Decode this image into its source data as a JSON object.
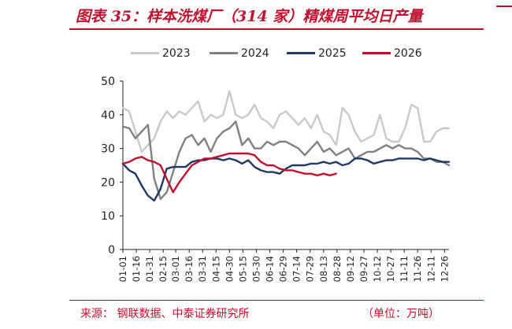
{
  "header": {
    "title": "图表 35：样本洗煤厂（314 家）精煤周平均日产量"
  },
  "footer": {
    "source": "来源：   钢联数据、中泰证券研究所",
    "unit": "（单位：万吨）"
  },
  "colors": {
    "accent": "#c0102e"
  },
  "chart_data": {
    "type": "line",
    "title": "",
    "xlabel": "",
    "ylabel": "",
    "unit": "万吨",
    "ylim": [
      0,
      50
    ],
    "yticks": [
      0,
      10,
      20,
      30,
      40,
      50
    ],
    "grid": false,
    "legend_position": "top",
    "x_tick_labels": [
      "01-01",
      "01-16",
      "01-31",
      "02-15",
      "03-01",
      "03-16",
      "03-31",
      "04-15",
      "04-30",
      "05-15",
      "05-30",
      "06-14",
      "06-29",
      "07-14",
      "07-29",
      "08-13",
      "08-28",
      "09-12",
      "09-27",
      "10-12",
      "10-27",
      "11-11",
      "11-26",
      "12-11",
      "12-26"
    ],
    "x_start": "01-01",
    "x_end": "12-31",
    "series": [
      {
        "name": "2023",
        "color": "#c8c8c8",
        "points": [
          [
            "01-01",
            42
          ],
          [
            "01-08",
            41
          ],
          [
            "01-15",
            35
          ],
          [
            "01-22",
            29
          ],
          [
            "01-29",
            31
          ],
          [
            "02-05",
            33
          ],
          [
            "02-12",
            38
          ],
          [
            "02-19",
            41
          ],
          [
            "02-26",
            39
          ],
          [
            "03-05",
            41
          ],
          [
            "03-12",
            40
          ],
          [
            "03-19",
            42
          ],
          [
            "03-26",
            44
          ],
          [
            "04-02",
            38
          ],
          [
            "04-09",
            40
          ],
          [
            "04-16",
            39
          ],
          [
            "04-23",
            40
          ],
          [
            "04-30",
            47
          ],
          [
            "05-07",
            40
          ],
          [
            "05-14",
            39
          ],
          [
            "05-21",
            40
          ],
          [
            "05-28",
            43
          ],
          [
            "06-04",
            39
          ],
          [
            "06-11",
            38
          ],
          [
            "06-18",
            36
          ],
          [
            "06-25",
            40
          ],
          [
            "07-02",
            41
          ],
          [
            "07-09",
            39
          ],
          [
            "07-16",
            37
          ],
          [
            "07-23",
            39
          ],
          [
            "07-30",
            36
          ],
          [
            "08-06",
            40
          ],
          [
            "08-13",
            35
          ],
          [
            "08-20",
            34
          ],
          [
            "08-27",
            31
          ],
          [
            "09-03",
            42
          ],
          [
            "09-10",
            40
          ],
          [
            "09-17",
            35
          ],
          [
            "09-24",
            32
          ],
          [
            "10-01",
            33
          ],
          [
            "10-08",
            34
          ],
          [
            "10-15",
            40
          ],
          [
            "10-22",
            33
          ],
          [
            "10-29",
            32
          ],
          [
            "11-05",
            32
          ],
          [
            "11-12",
            36
          ],
          [
            "11-19",
            43
          ],
          [
            "11-26",
            42
          ],
          [
            "12-03",
            32
          ],
          [
            "12-10",
            32
          ],
          [
            "12-17",
            35
          ],
          [
            "12-24",
            36
          ],
          [
            "12-31",
            36
          ]
        ]
      },
      {
        "name": "2024",
        "color": "#808080",
        "points": [
          [
            "01-01",
            36.5
          ],
          [
            "01-08",
            36
          ],
          [
            "01-15",
            33
          ],
          [
            "01-22",
            35
          ],
          [
            "01-29",
            37
          ],
          [
            "02-05",
            21
          ],
          [
            "02-12",
            15
          ],
          [
            "02-19",
            17
          ],
          [
            "02-26",
            23
          ],
          [
            "03-05",
            29
          ],
          [
            "03-12",
            33
          ],
          [
            "03-19",
            34
          ],
          [
            "03-26",
            31
          ],
          [
            "04-02",
            33
          ],
          [
            "04-09",
            29
          ],
          [
            "04-16",
            33
          ],
          [
            "04-23",
            35
          ],
          [
            "04-30",
            36
          ],
          [
            "05-07",
            38
          ],
          [
            "05-14",
            31
          ],
          [
            "05-21",
            33
          ],
          [
            "05-28",
            30
          ],
          [
            "06-04",
            30
          ],
          [
            "06-11",
            32
          ],
          [
            "06-18",
            31
          ],
          [
            "06-25",
            32
          ],
          [
            "07-02",
            32
          ],
          [
            "07-09",
            31
          ],
          [
            "07-16",
            30
          ],
          [
            "07-23",
            28
          ],
          [
            "07-30",
            30
          ],
          [
            "08-06",
            32
          ],
          [
            "08-13",
            29
          ],
          [
            "08-20",
            30
          ],
          [
            "08-27",
            28
          ],
          [
            "09-03",
            29
          ],
          [
            "09-10",
            30
          ],
          [
            "09-17",
            27
          ],
          [
            "09-24",
            28
          ],
          [
            "10-01",
            29
          ],
          [
            "10-08",
            29
          ],
          [
            "10-15",
            30
          ],
          [
            "10-22",
            31
          ],
          [
            "10-29",
            30
          ],
          [
            "11-05",
            31
          ],
          [
            "11-12",
            30
          ],
          [
            "11-19",
            30
          ],
          [
            "11-26",
            29
          ],
          [
            "12-03",
            27
          ],
          [
            "12-10",
            27
          ],
          [
            "12-17",
            26
          ],
          [
            "12-24",
            26
          ],
          [
            "12-31",
            25
          ]
        ]
      },
      {
        "name": "2025",
        "color": "#1f3764",
        "points": [
          [
            "01-01",
            25.5
          ],
          [
            "01-08",
            23.5
          ],
          [
            "01-15",
            22.5
          ],
          [
            "01-22",
            19
          ],
          [
            "01-29",
            16
          ],
          [
            "02-05",
            14.5
          ],
          [
            "02-12",
            18
          ],
          [
            "02-19",
            24
          ],
          [
            "02-26",
            24.5
          ],
          [
            "03-05",
            24.5
          ],
          [
            "03-12",
            24.5
          ],
          [
            "03-19",
            26
          ],
          [
            "03-26",
            26.5
          ],
          [
            "04-02",
            26.5
          ],
          [
            "04-09",
            27
          ],
          [
            "04-16",
            27
          ],
          [
            "04-23",
            26.5
          ],
          [
            "04-30",
            27
          ],
          [
            "05-07",
            26.5
          ],
          [
            "05-14",
            25.5
          ],
          [
            "05-21",
            26.5
          ],
          [
            "05-28",
            24.5
          ],
          [
            "06-04",
            23.5
          ],
          [
            "06-11",
            23
          ],
          [
            "06-18",
            23
          ],
          [
            "06-25",
            22.5
          ],
          [
            "07-02",
            24
          ],
          [
            "07-09",
            25
          ],
          [
            "07-16",
            25
          ],
          [
            "07-23",
            25
          ],
          [
            "07-30",
            25.5
          ],
          [
            "08-06",
            25.5
          ],
          [
            "08-13",
            26
          ],
          [
            "08-20",
            25.5
          ],
          [
            "08-27",
            26
          ],
          [
            "09-03",
            25
          ],
          [
            "09-10",
            25.5
          ],
          [
            "09-17",
            27
          ],
          [
            "09-24",
            27
          ],
          [
            "10-01",
            26.5
          ],
          [
            "10-08",
            25.5
          ],
          [
            "10-15",
            26
          ],
          [
            "10-22",
            26.5
          ],
          [
            "10-29",
            26.5
          ],
          [
            "11-05",
            27
          ],
          [
            "11-12",
            27
          ],
          [
            "11-19",
            27
          ],
          [
            "11-26",
            27
          ],
          [
            "12-03",
            26.5
          ],
          [
            "12-10",
            27
          ],
          [
            "12-17",
            26.5
          ],
          [
            "12-24",
            26
          ],
          [
            "12-31",
            26
          ]
        ]
      },
      {
        "name": "2026",
        "color": "#c0102e",
        "points": [
          [
            "01-01",
            25.5
          ],
          [
            "01-08",
            26
          ],
          [
            "01-15",
            27
          ],
          [
            "01-22",
            27.5
          ],
          [
            "01-29",
            26.5
          ],
          [
            "02-05",
            26
          ],
          [
            "02-12",
            25
          ],
          [
            "02-19",
            21
          ],
          [
            "02-26",
            17
          ],
          [
            "03-05",
            20
          ],
          [
            "03-12",
            22.5
          ],
          [
            "03-19",
            25
          ],
          [
            "03-26",
            26
          ],
          [
            "04-02",
            27
          ],
          [
            "04-09",
            27
          ],
          [
            "04-16",
            27.5
          ],
          [
            "04-23",
            28
          ],
          [
            "04-30",
            28.5
          ],
          [
            "05-07",
            28.5
          ],
          [
            "05-14",
            28.5
          ],
          [
            "05-21",
            28.5
          ],
          [
            "05-28",
            28
          ],
          [
            "06-04",
            26
          ],
          [
            "06-11",
            25
          ],
          [
            "06-18",
            25
          ],
          [
            "06-25",
            24
          ],
          [
            "07-02",
            23.5
          ],
          [
            "07-09",
            23.5
          ],
          [
            "07-16",
            23
          ],
          [
            "07-23",
            22.5
          ],
          [
            "07-30",
            22.5
          ],
          [
            "08-06",
            22
          ],
          [
            "08-13",
            22.5
          ],
          [
            "08-20",
            22
          ],
          [
            "08-27",
            22.5
          ]
        ]
      }
    ]
  }
}
